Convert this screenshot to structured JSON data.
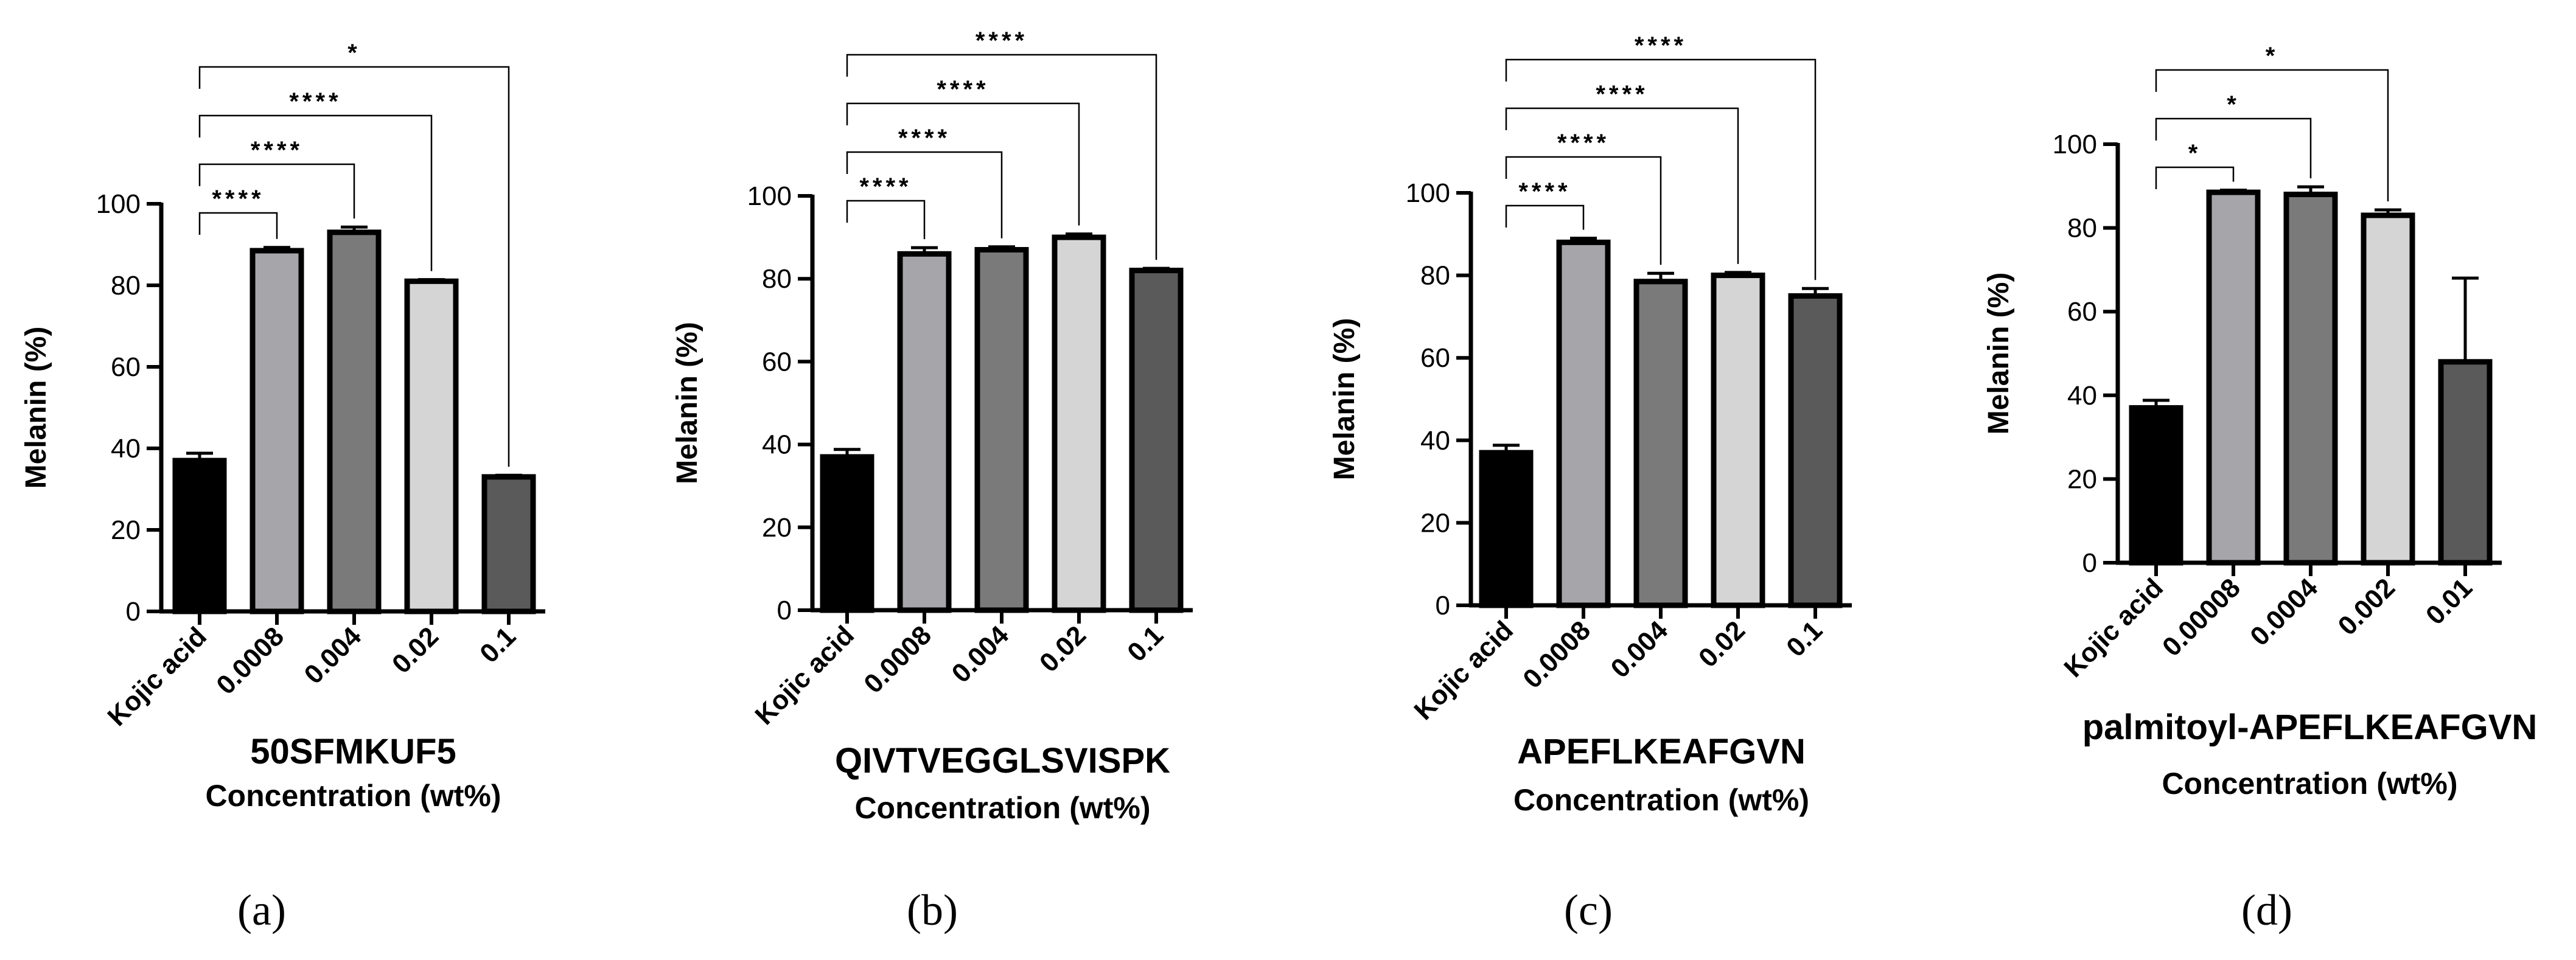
{
  "chart_data": [
    {
      "type": "bar",
      "panel": "(a)",
      "title": "50SFMKUF5",
      "xlabel": "Concentration (wt%)",
      "ylabel": "Melanin (%)",
      "ylim": [
        0,
        100
      ],
      "yticks": [
        0,
        20,
        40,
        60,
        80,
        100
      ],
      "categories": [
        "Kojic acid",
        "0.0008",
        "0.004",
        "0.02",
        "0.1"
      ],
      "values": [
        37,
        88.5,
        93,
        81,
        33
      ],
      "errors": [
        1.8,
        0.8,
        1.3,
        0.4,
        0.4
      ],
      "colors": [
        "#000000",
        "#a6a6aa",
        "#7a7a7a",
        "#d5d5d5",
        "#5a5a5a"
      ],
      "comparisons": [
        {
          "from": 0,
          "to": 1,
          "label": "****"
        },
        {
          "from": 0,
          "to": 2,
          "label": "****"
        },
        {
          "from": 0,
          "to": 3,
          "label": "****"
        },
        {
          "from": 0,
          "to": 4,
          "label": "*"
        }
      ]
    },
    {
      "type": "bar",
      "panel": "(b)",
      "title": "QIVTVEGGLSVISPK",
      "xlabel": "Concentration (wt%)",
      "ylabel": "Melanin (%)",
      "ylim": [
        0,
        100
      ],
      "yticks": [
        0,
        20,
        40,
        60,
        80,
        100
      ],
      "categories": [
        "Kojic acid",
        "0.0008",
        "0.004",
        "0.02",
        "0.1"
      ],
      "values": [
        37,
        86,
        87,
        90,
        82
      ],
      "errors": [
        1.8,
        1.5,
        0.7,
        0.8,
        0.5
      ],
      "colors": [
        "#000000",
        "#a6a6aa",
        "#7a7a7a",
        "#d5d5d5",
        "#5a5a5a"
      ],
      "comparisons": [
        {
          "from": 0,
          "to": 1,
          "label": "****"
        },
        {
          "from": 0,
          "to": 2,
          "label": "****"
        },
        {
          "from": 0,
          "to": 3,
          "label": "****"
        },
        {
          "from": 0,
          "to": 4,
          "label": "****"
        }
      ]
    },
    {
      "type": "bar",
      "panel": "(c)",
      "title": "APEFLKEAFGVN",
      "xlabel": "Concentration (wt%)",
      "ylabel": "Melanin (%)",
      "ylim": [
        0,
        100
      ],
      "yticks": [
        0,
        20,
        40,
        60,
        80,
        100
      ],
      "categories": [
        "Kojic acid",
        "0.0008",
        "0.004",
        "0.02",
        "0.1"
      ],
      "values": [
        37,
        88,
        78.5,
        80,
        75
      ],
      "errors": [
        1.8,
        1.0,
        2.0,
        0.7,
        1.8
      ],
      "colors": [
        "#000000",
        "#a6a6aa",
        "#7a7a7a",
        "#d5d5d5",
        "#5a5a5a"
      ],
      "comparisons": [
        {
          "from": 0,
          "to": 1,
          "label": "****"
        },
        {
          "from": 0,
          "to": 2,
          "label": "****"
        },
        {
          "from": 0,
          "to": 3,
          "label": "****"
        },
        {
          "from": 0,
          "to": 4,
          "label": "****"
        }
      ]
    },
    {
      "type": "bar",
      "panel": "(d)",
      "title": "palmitoyl-APEFLKEAFGVN",
      "xlabel": "Concentration (wt%)",
      "ylabel": "Melanin (%)",
      "ylim": [
        0,
        100
      ],
      "yticks": [
        0,
        20,
        40,
        60,
        80,
        100
      ],
      "categories": [
        "Kojic acid",
        "0.00008",
        "0.0004",
        "0.002",
        "0.01"
      ],
      "values": [
        37,
        88.5,
        88,
        83,
        48
      ],
      "errors": [
        1.8,
        0.5,
        1.8,
        1.3,
        20
      ],
      "colors": [
        "#000000",
        "#a6a6aa",
        "#7a7a7a",
        "#d5d5d5",
        "#5a5a5a"
      ],
      "comparisons": [
        {
          "from": 0,
          "to": 1,
          "label": "*"
        },
        {
          "from": 0,
          "to": 2,
          "label": "*"
        },
        {
          "from": 0,
          "to": 3,
          "label": "*"
        }
      ]
    }
  ]
}
